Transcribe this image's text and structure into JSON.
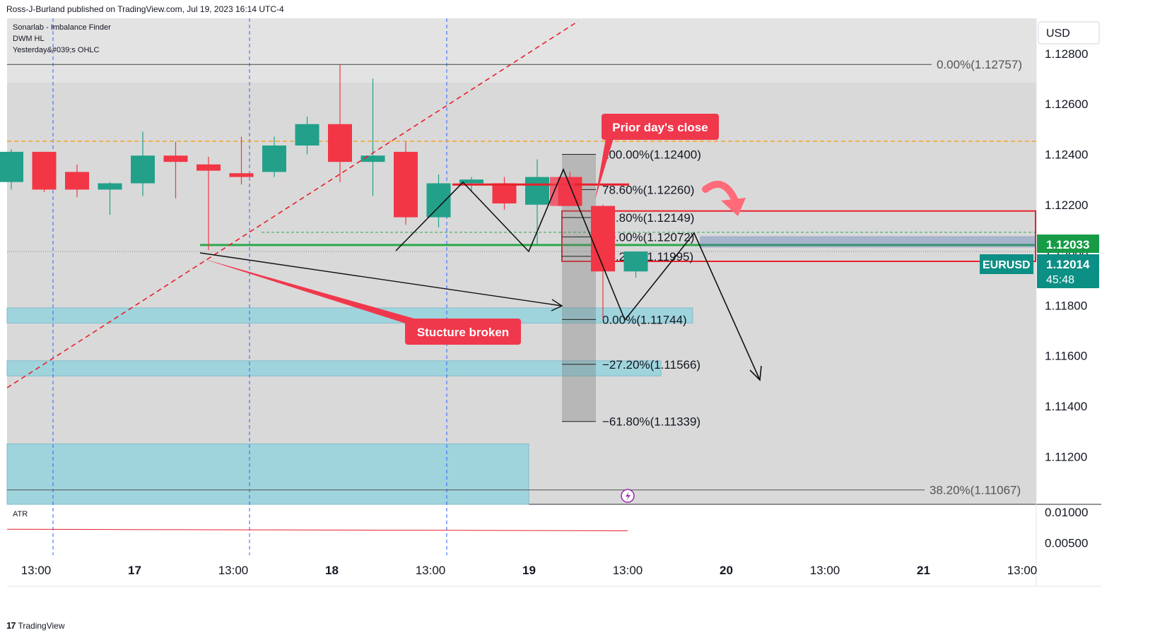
{
  "header": {
    "publisher_line": "Ross-J-Burland published on TradingView.com, Jul 19, 2023 16:14 UTC-4"
  },
  "legend": {
    "items": [
      "Sonarlab - Imbalance Finder",
      "DWM HL",
      "Yesterday&#039;s OHLC"
    ],
    "atr_label": "ATR"
  },
  "footer": {
    "brand": "TradingView"
  },
  "price_scale": {
    "currency": "USD",
    "labels": [
      "1.12800",
      "1.12600",
      "1.12400",
      "1.12200",
      "1.12000",
      "1.11800",
      "1.11600",
      "1.11400",
      "1.11200"
    ],
    "atr_labels": [
      "0.01000",
      "0.00500"
    ]
  },
  "time_axis": {
    "labels": [
      "13:00",
      "17",
      "13:00",
      "18",
      "13:00",
      "19",
      "13:00",
      "20",
      "13:00",
      "21",
      "13:00"
    ]
  },
  "badges": {
    "current_price": "1.12033",
    "symbol": "EURUSD",
    "last_price": "1.12014",
    "countdown": "45:48"
  },
  "annotations": {
    "prior_close": "Prior day's close",
    "structure": "Stucture broken"
  },
  "colors": {
    "bull": "#22a08a",
    "bear": "#f23645",
    "callout": "#f0384c",
    "imbalance": "#9fd4dd",
    "green_line": "#2da84a",
    "badge_green": "#189b47",
    "badge_teal": "#0c8f84",
    "fib_dashed": "#f5a623"
  },
  "chart_data": {
    "type": "candlestick",
    "symbol": "EURUSD",
    "currency": "USD",
    "ylim": [
      1.1101,
      1.1294
    ],
    "candles": [
      {
        "o": 1.1229,
        "h": 1.1242,
        "l": 1.1226,
        "c": 1.1241
      },
      {
        "o": 1.1241,
        "h": 1.1241,
        "l": 1.1225,
        "c": 1.1226
      },
      {
        "o": 1.1233,
        "h": 1.1236,
        "l": 1.1223,
        "c": 1.1226
      },
      {
        "o": 1.1226,
        "h": 1.1229,
        "l": 1.1216,
        "c": 1.12285
      },
      {
        "o": 1.12285,
        "h": 1.1249,
        "l": 1.12235,
        "c": 1.12395
      },
      {
        "o": 1.12395,
        "h": 1.1245,
        "l": 1.12225,
        "c": 1.1237
      },
      {
        "o": 1.1236,
        "h": 1.1239,
        "l": 1.1202,
        "c": 1.12335
      },
      {
        "o": 1.12325,
        "h": 1.1247,
        "l": 1.1228,
        "c": 1.1231
      },
      {
        "o": 1.1233,
        "h": 1.1247,
        "l": 1.1231,
        "c": 1.12435
      },
      {
        "o": 1.12435,
        "h": 1.1255,
        "l": 1.124,
        "c": 1.1252
      },
      {
        "o": 1.1252,
        "h": 1.12757,
        "l": 1.1229,
        "c": 1.1237
      },
      {
        "o": 1.1237,
        "h": 1.127,
        "l": 1.12235,
        "c": 1.12395
      },
      {
        "o": 1.1241,
        "h": 1.1245,
        "l": 1.1212,
        "c": 1.1215
      },
      {
        "o": 1.1215,
        "h": 1.1232,
        "l": 1.1211,
        "c": 1.12285
      },
      {
        "o": 1.12285,
        "h": 1.1231,
        "l": 1.1225,
        "c": 1.123
      },
      {
        "o": 1.12285,
        "h": 1.1231,
        "l": 1.1218,
        "c": 1.12205
      },
      {
        "o": 1.122,
        "h": 1.1238,
        "l": 1.1204,
        "c": 1.1231
      },
      {
        "o": 1.1231,
        "h": 1.1233,
        "l": 1.122,
        "c": 1.12195
      },
      {
        "o": 1.12195,
        "h": 1.122,
        "l": 1.11744,
        "c": 1.11935
      },
      {
        "o": 1.11935,
        "h": 1.12014,
        "l": 1.1191,
        "c": 1.12014
      }
    ],
    "fib_retracement": [
      {
        "label": "100.00%(1.12400)",
        "price": 1.124
      },
      {
        "label": "78.60%(1.12260)",
        "price": 1.1226
      },
      {
        "label": "61.80%(1.12149)",
        "price": 1.12149
      },
      {
        "label": "50.00%(1.12072)",
        "price": 1.12072
      },
      {
        "label": "38.20%(1.11995)",
        "price": 1.11995
      },
      {
        "label": "0.00%(1.11744)",
        "price": 1.11744
      },
      {
        "label": "−27.20%(1.11566)",
        "price": 1.11566
      },
      {
        "label": "−61.80%(1.11339)",
        "price": 1.11339
      }
    ],
    "dwm_levels": [
      {
        "label": "0.00%(1.12757)",
        "price": 1.12757
      },
      {
        "label": "38.20%(1.11067)",
        "price": 1.11067
      }
    ],
    "prior_close_price": 1.1228,
    "structure_level": 1.1204,
    "yesterday_level": 1.12452,
    "imbalance_zones": [
      {
        "from": 1.1173,
        "to": 1.1179
      },
      {
        "from": 1.1152,
        "to": 1.1158
      },
      {
        "from": 1.1101,
        "to": 1.1125
      }
    ],
    "supply_zone": {
      "from": 1.11975,
      "to": 1.12175
    },
    "atr": {
      "values": [
        0.0072,
        0.00715,
        0.0071,
        0.00705,
        0.007,
        0.00695
      ],
      "ylim": [
        0.003,
        0.011
      ]
    }
  }
}
